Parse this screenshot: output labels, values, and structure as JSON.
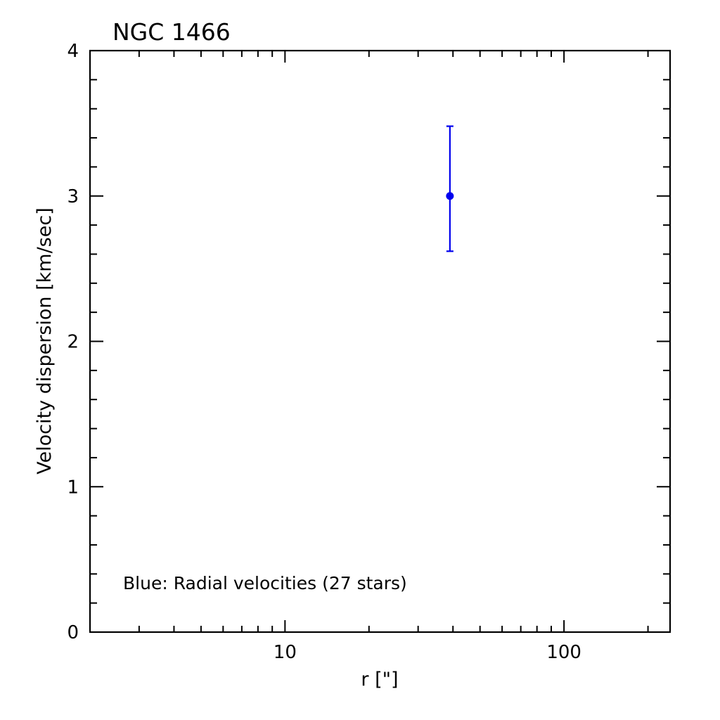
{
  "chart_data": {
    "type": "scatter",
    "title": "NGC 1466",
    "xlabel": "r [\"]",
    "ylabel": "Velocity dispersion [km/sec]",
    "xscale": "log",
    "xlim": [
      2,
      240
    ],
    "ylim": [
      0,
      4
    ],
    "x_tick_labels": [
      "10",
      "100"
    ],
    "y_tick_labels": [
      "0",
      "1",
      "2",
      "3",
      "4"
    ],
    "grid": false,
    "series": [
      {
        "points": [
          {
            "x": 39,
            "y": 3.0,
            "yerr_low": 2.62,
            "yerr_high": 3.48
          }
        ],
        "color": "#0000ee"
      }
    ],
    "annotation": "Blue: Radial velocities (27 stars)",
    "annotation_color": "#0000ee"
  }
}
